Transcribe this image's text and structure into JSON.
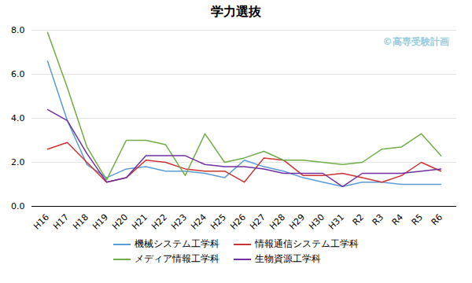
{
  "chart_data": {
    "type": "line",
    "title": "学力選抜",
    "categories": [
      "H16",
      "H17",
      "H18",
      "H19",
      "H20",
      "H21",
      "H22",
      "H23",
      "H24",
      "H25",
      "H26",
      "H27",
      "H28",
      "H29",
      "H30",
      "H31",
      "R2",
      "R3",
      "R4",
      "R5",
      "R6"
    ],
    "series": [
      {
        "name": "機械システム工学科",
        "color": "#5B9BD5",
        "values": [
          6.6,
          3.9,
          1.9,
          1.3,
          1.7,
          1.8,
          1.6,
          1.6,
          1.5,
          1.3,
          2.1,
          1.8,
          1.6,
          1.3,
          1.1,
          0.9,
          1.1,
          1.1,
          1.0,
          1.0,
          1.0
        ]
      },
      {
        "name": "情報通信システム工学科",
        "color": "#CC3333",
        "values": [
          2.6,
          2.9,
          2.0,
          1.1,
          1.3,
          2.1,
          2.0,
          1.7,
          1.6,
          1.6,
          1.1,
          2.2,
          2.1,
          1.4,
          1.4,
          1.5,
          1.3,
          1.1,
          1.4,
          2.0,
          1.6
        ]
      },
      {
        "name": "メディア情報工学科",
        "color": "#70AD47",
        "values": [
          7.9,
          5.4,
          2.7,
          1.2,
          3.0,
          3.0,
          2.8,
          1.4,
          3.3,
          2.0,
          2.2,
          2.5,
          2.1,
          2.1,
          2.0,
          1.9,
          2.0,
          2.6,
          2.7,
          3.3,
          2.3
        ]
      },
      {
        "name": "生物資源工学科",
        "color": "#7030A0",
        "values": [
          4.4,
          3.9,
          2.4,
          1.1,
          1.3,
          2.3,
          2.3,
          2.3,
          1.9,
          1.8,
          1.8,
          1.7,
          1.5,
          1.5,
          1.5,
          0.9,
          1.5,
          1.5,
          1.5,
          1.6,
          1.7
        ]
      }
    ],
    "ylim": [
      0,
      8.0
    ],
    "yticks": [
      {
        "value": 0.0,
        "label": "0.0"
      },
      {
        "value": 2.0,
        "label": "2.0"
      },
      {
        "value": 4.0,
        "label": "4.0"
      },
      {
        "value": 6.0,
        "label": "6.0"
      },
      {
        "value": 8.0,
        "label": "8.0"
      }
    ],
    "grid": true,
    "legend": "bottom",
    "annotations": [
      {
        "text": "©高専受験計画",
        "color": "#99ccdd"
      }
    ]
  }
}
